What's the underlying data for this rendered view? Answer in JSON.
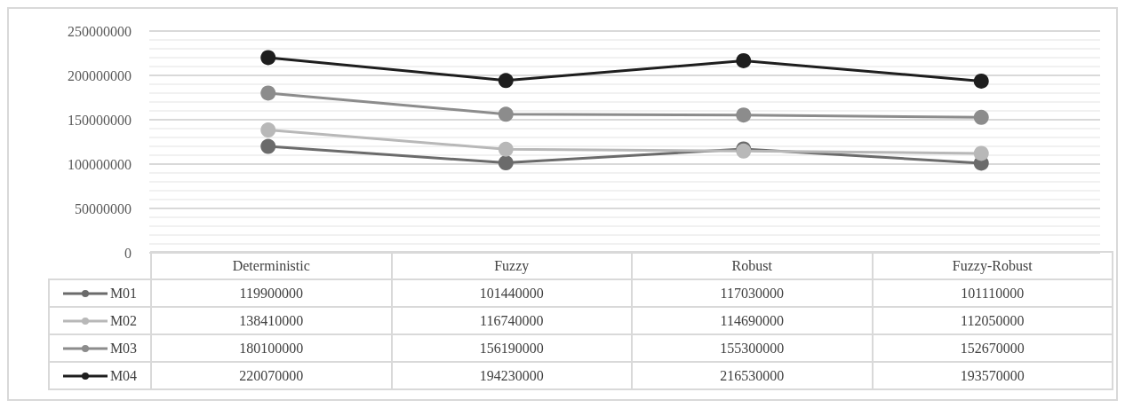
{
  "chart_data": {
    "type": "line",
    "categories": [
      "Deterministic",
      "Fuzzy",
      "Robust",
      "Fuzzy-Robust"
    ],
    "series": [
      {
        "name": "M01",
        "color": "#6b6b6b",
        "values": [
          119900000,
          101440000,
          117030000,
          101110000
        ]
      },
      {
        "name": "M02",
        "color": "#b8b8b8",
        "values": [
          138410000,
          116740000,
          114690000,
          112050000
        ]
      },
      {
        "name": "M03",
        "color": "#8c8c8c",
        "values": [
          180100000,
          156190000,
          155300000,
          152670000
        ]
      },
      {
        "name": "M04",
        "color": "#1e1e1e",
        "values": [
          220070000,
          194230000,
          216530000,
          193570000
        ]
      }
    ],
    "ylim": [
      0,
      250000000
    ],
    "yticks": [
      0,
      50000000,
      100000000,
      150000000,
      200000000,
      250000000
    ],
    "grid": true,
    "marker": "circle",
    "data_labels": true,
    "legend": "bottom"
  }
}
